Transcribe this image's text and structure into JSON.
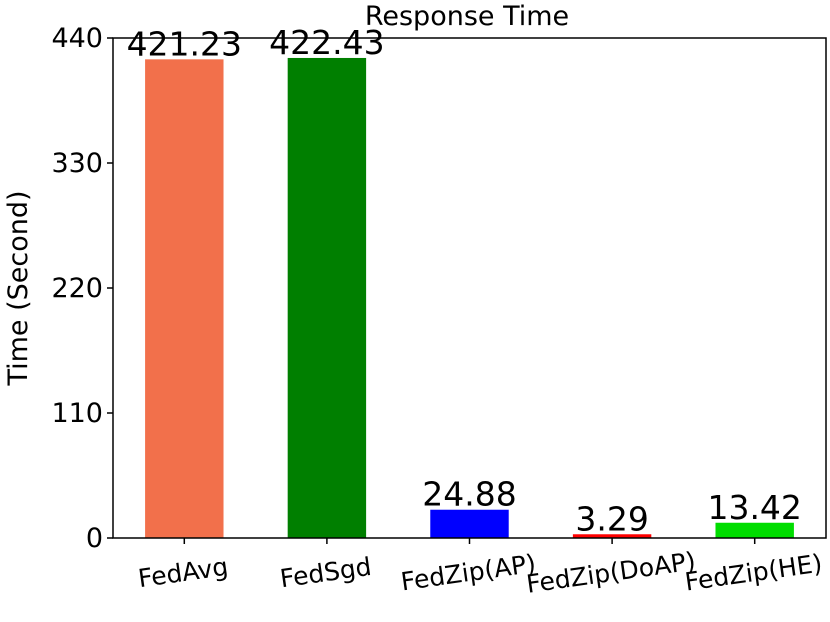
{
  "chart_data": {
    "type": "bar",
    "title": "Response Time",
    "xlabel": "",
    "ylabel": "Time (Second)",
    "categories": [
      "FedAvg",
      "FedSgd",
      "FedZip(AP)",
      "FedZip(DoAP)",
      "FedZip(HE)"
    ],
    "values": [
      421.23,
      422.43,
      24.88,
      3.29,
      13.42
    ],
    "data_labels": [
      "421.23",
      "422.43",
      "24.88",
      "3.29",
      "13.42"
    ],
    "colors": [
      "#f2704b",
      "#007f00",
      "#0000ff",
      "#ff0000",
      "#00dd00"
    ],
    "ylim": [
      0,
      440
    ],
    "yticks": [
      0,
      110,
      220,
      330,
      440
    ],
    "ytick_labels": [
      "0",
      "110",
      "220",
      "330",
      "440"
    ],
    "grid": false,
    "legend": false
  }
}
